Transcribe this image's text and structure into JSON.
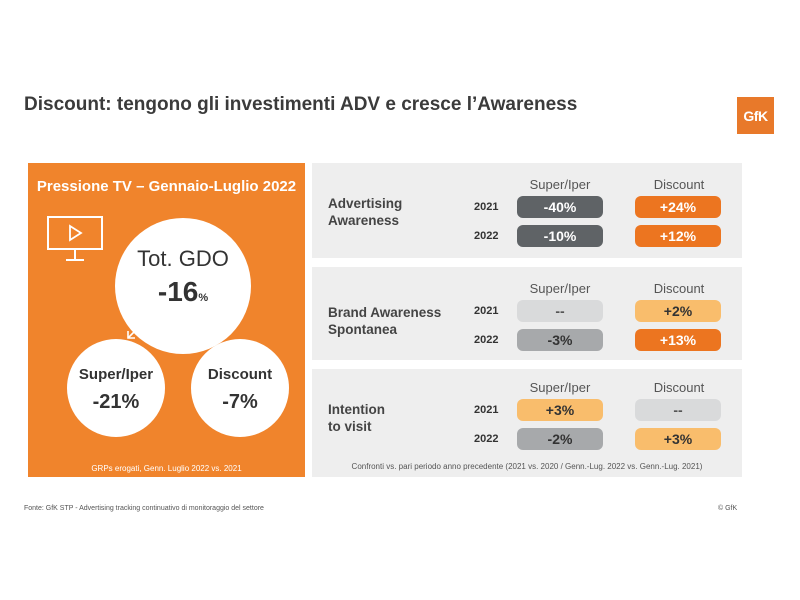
{
  "title": "Discount: tengono gli investimenti ADV e cresce l’Awareness",
  "logo": "GfK",
  "colors": {
    "orange": "#f0842c",
    "dark_gray": "#5f6366",
    "mid_gray": "#a7a9ab",
    "light_gray": "#d9dadb",
    "light_orange": "#f9bd6c",
    "strong_orange": "#ec7520"
  },
  "left_panel": {
    "title": "Pressione TV – Gennaio-Luglio 2022",
    "icon": "tv-icon",
    "total": {
      "label": "Tot. GDO",
      "value": "-16",
      "unit": "%"
    },
    "super": {
      "label": "Super/Iper",
      "value": "-21%"
    },
    "discount": {
      "label": "Discount",
      "value": "-7%"
    },
    "footnote": "GRPs erogati, Genn. Luglio 2022 vs. 2021"
  },
  "columns": {
    "super": "Super/Iper",
    "discount": "Discount"
  },
  "years": [
    "2021",
    "2022"
  ],
  "metrics": [
    {
      "name_lines": [
        "Advertising",
        "Awareness"
      ],
      "rows": [
        {
          "year": "2021",
          "super": "-40%",
          "discount": "+24%"
        },
        {
          "year": "2022",
          "super": "-10%",
          "discount": "+12%"
        }
      ]
    },
    {
      "name_lines": [
        "Brand Awareness",
        "Spontanea"
      ],
      "rows": [
        {
          "year": "2021",
          "super": "--",
          "discount": "+2%"
        },
        {
          "year": "2022",
          "super": "-3%",
          "discount": "+13%"
        }
      ]
    },
    {
      "name_lines": [
        "Intention",
        "to visit"
      ],
      "rows": [
        {
          "year": "2021",
          "super": "+3%",
          "discount": "--"
        },
        {
          "year": "2022",
          "super": "-2%",
          "discount": "+3%"
        }
      ]
    }
  ],
  "comparison_note": "Confronti vs. pari periodo anno precedente (2021 vs. 2020 / Genn.-Lug. 2022 vs. Genn.-Lug. 2021)",
  "source": "Fonte: GfK STP - Advertising tracking continuativo di monitoraggio del settore",
  "copyright": "© GfK"
}
